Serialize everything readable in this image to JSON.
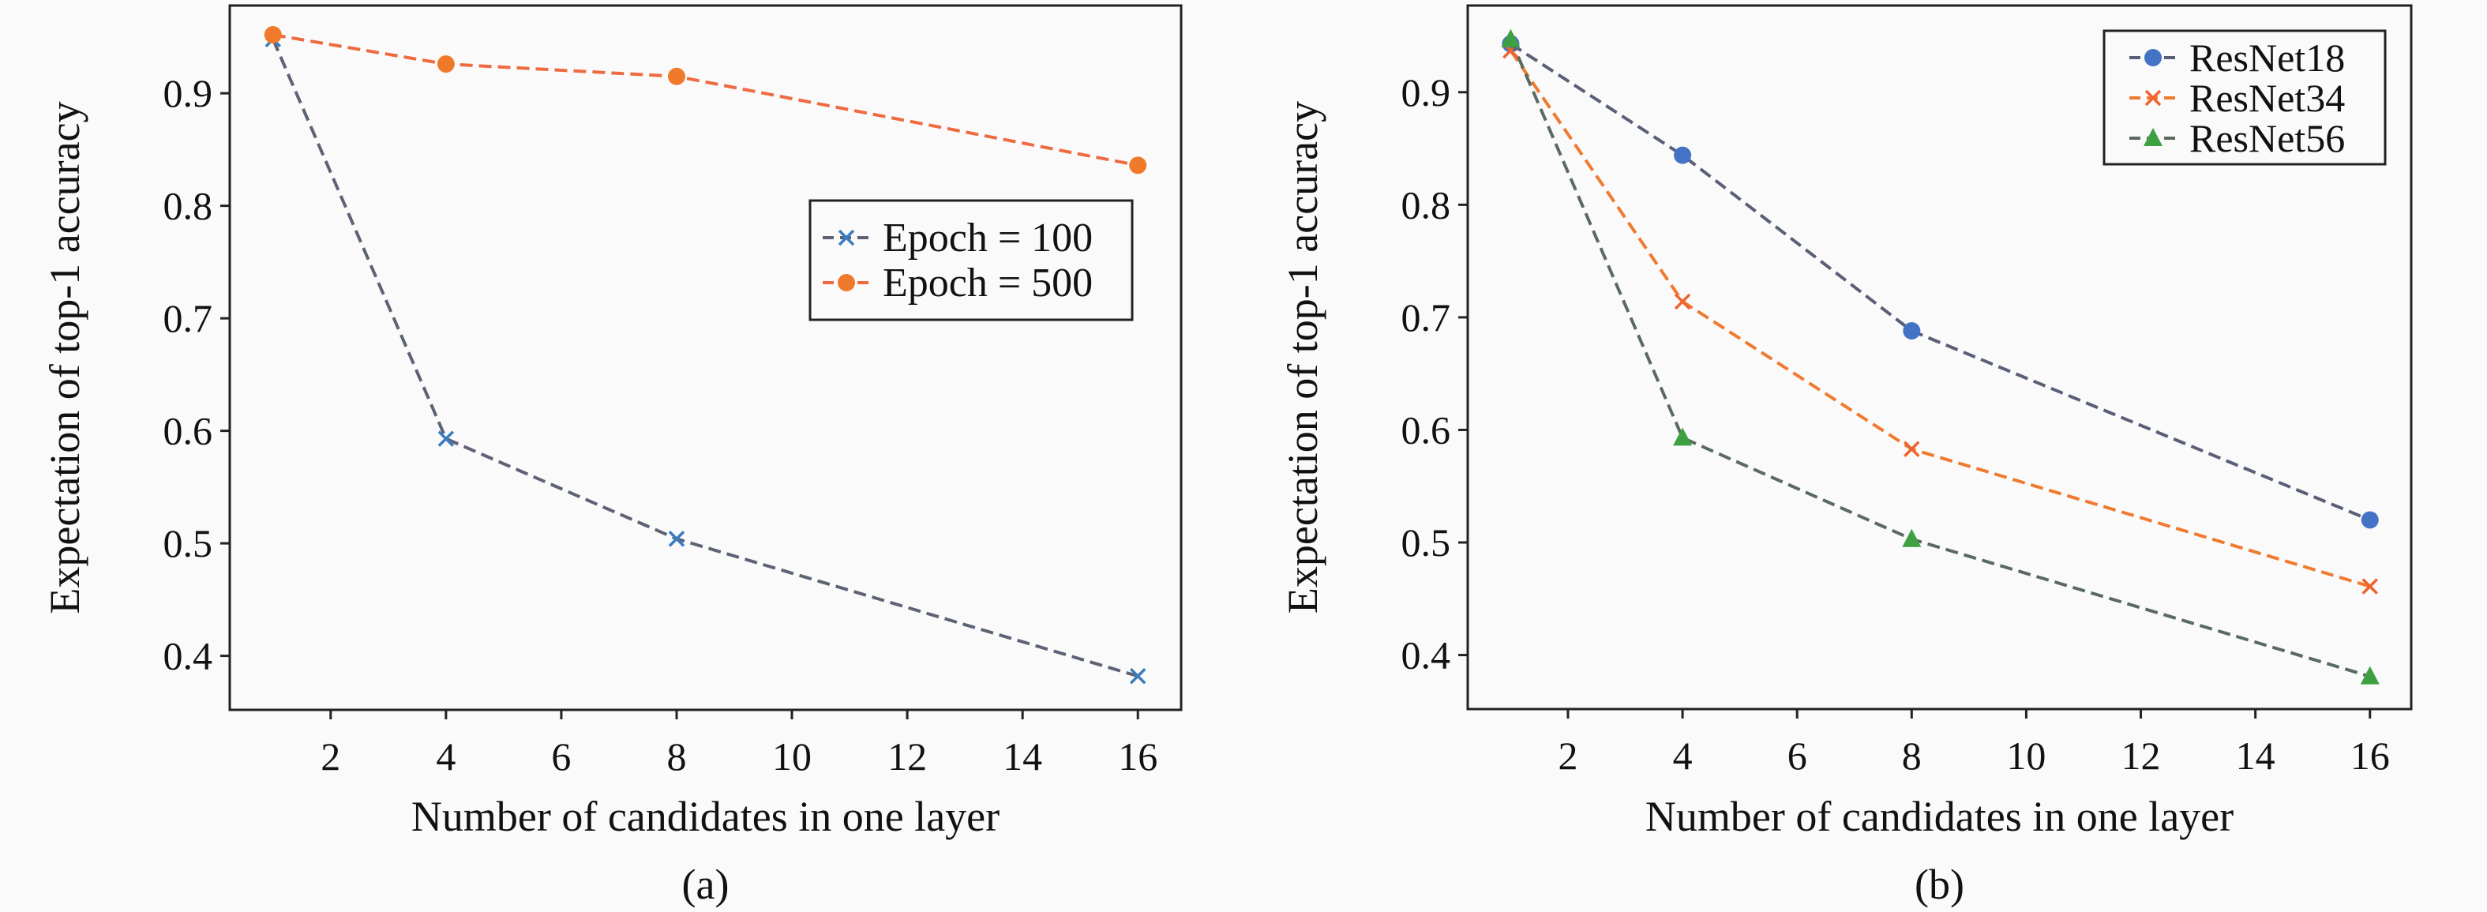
{
  "chart_data": [
    {
      "type": "line",
      "caption": "(a)",
      "xlabel": "Number of candidates in one layer",
      "ylabel": "Expectation of top-1 accuracy",
      "xlim": [
        0.25,
        16.75
      ],
      "ylim": [
        0.352,
        0.978
      ],
      "xticks": [
        2,
        4,
        6,
        8,
        10,
        12,
        14,
        16
      ],
      "yticks": [
        0.4,
        0.5,
        0.6,
        0.7,
        0.8,
        0.9
      ],
      "grid": false,
      "legend_placement": "center-right",
      "x": [
        1,
        4,
        8,
        16
      ],
      "series": [
        {
          "name": "Epoch = 100",
          "values": [
            0.948,
            0.593,
            0.504,
            0.382
          ],
          "marker": "x",
          "marker_color": "#3b7bbf",
          "line_color": "#5d6275"
        },
        {
          "name": "Epoch = 500",
          "values": [
            0.952,
            0.926,
            0.915,
            0.836
          ],
          "marker": "circle",
          "marker_color": "#f07a2c",
          "line_color": "#ee6a40"
        }
      ]
    },
    {
      "type": "line",
      "caption": "(b)",
      "xlabel": "Number of candidates in one layer",
      "ylabel": "Expectation of top-1 accuracy",
      "xlim": [
        0.25,
        16.72
      ],
      "ylim": [
        0.352,
        0.977
      ],
      "xticks": [
        2,
        4,
        6,
        8,
        10,
        12,
        14,
        16
      ],
      "yticks": [
        0.4,
        0.5,
        0.6,
        0.7,
        0.8,
        0.9
      ],
      "grid": false,
      "legend_placement": "top-right",
      "x": [
        1,
        4,
        8,
        16
      ],
      "series": [
        {
          "name": "ResNet18",
          "values": [
            0.943,
            0.844,
            0.688,
            0.52
          ],
          "marker": "circle",
          "marker_color": "#4472c4",
          "line_color": "#5a5f78"
        },
        {
          "name": "ResNet34",
          "values": [
            0.937,
            0.714,
            0.583,
            0.461
          ],
          "marker": "x",
          "marker_color": "#f0622c",
          "line_color": "#ef7a30"
        },
        {
          "name": "ResNet56",
          "values": [
            0.947,
            0.593,
            0.503,
            0.381
          ],
          "marker": "triangle",
          "marker_color": "#3ea040",
          "line_color": "#5a6a60"
        }
      ]
    }
  ]
}
